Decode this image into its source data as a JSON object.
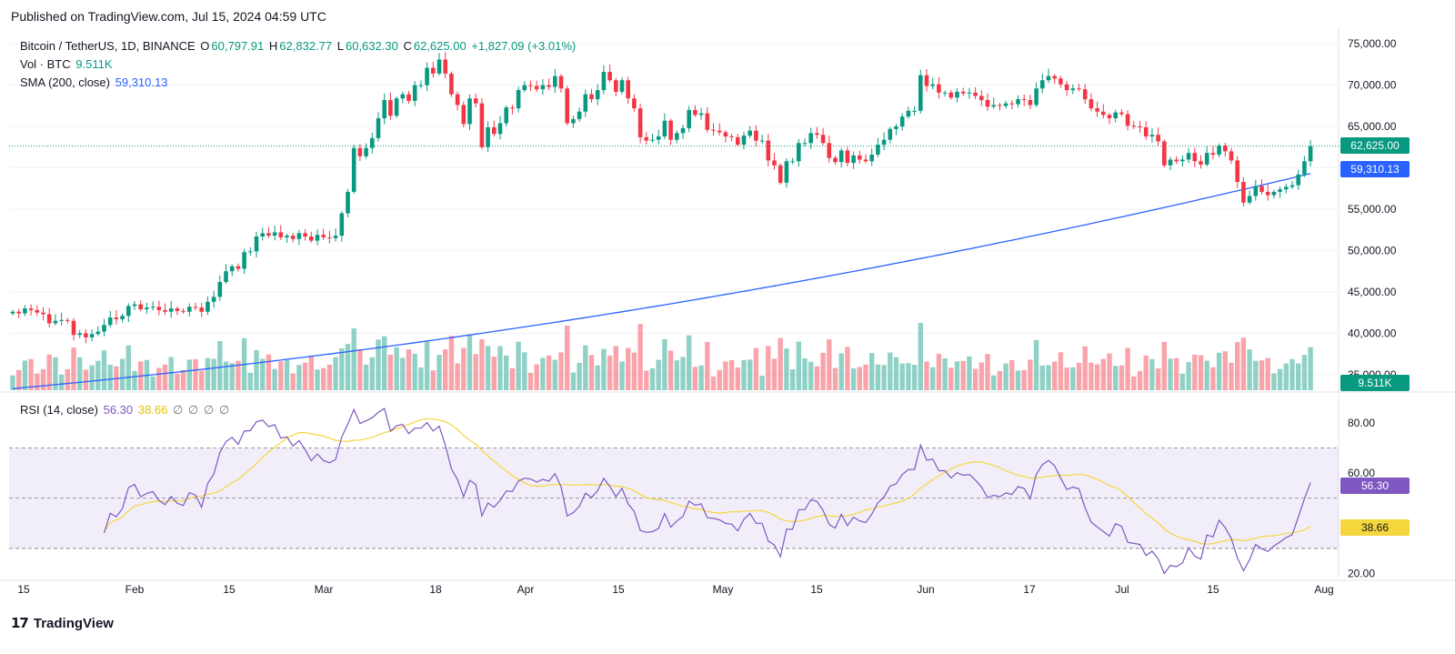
{
  "header": {
    "published": "Published on TradingView.com, Jul 15, 2024 04:59 UTC"
  },
  "legend": {
    "symbol": "Bitcoin / TetherUS, 1D, BINANCE",
    "open_key": "O",
    "open": "60,797.91",
    "high_key": "H",
    "high": "62,832.77",
    "low_key": "L",
    "low": "60,632.30",
    "close_key": "C",
    "close": "62,625.00",
    "change": "+1,827.09 (+3.01%)",
    "vol_label": "Vol · BTC",
    "vol_value": "9.511K",
    "sma_label": "SMA (200, close)",
    "sma_value": "59,310.13",
    "rsi_label": "RSI (14, close)",
    "rsi_value": "56.30",
    "rsi_ma_value": "38.66",
    "rsi_extra": [
      "∅",
      "∅",
      "∅",
      "∅"
    ]
  },
  "footer": {
    "brand": "TradingView",
    "mark": "17"
  },
  "colors": {
    "up": "#089981",
    "down": "#f23645",
    "sma": "#2962ff",
    "rsi": "#7e57c2",
    "rsi_ma": "#f5d63d"
  },
  "tags": {
    "price": "62,625.00",
    "sma": "59,310.13",
    "volume": "9.511K",
    "rsi": "56.30",
    "rsi_ma": "38.66"
  },
  "chart_data": [
    {
      "type": "candlestick",
      "title": "Bitcoin / TetherUS, 1D, BINANCE",
      "x_ticks": [
        "15",
        "Feb",
        "15",
        "Mar",
        "18",
        "Apr",
        "15",
        "May",
        "15",
        "Jun",
        "17",
        "Jul",
        "15",
        "Aug"
      ],
      "y_ticks": [
        "75,000.00",
        "70,000.00",
        "65,000.00",
        "60,000.00",
        "55,000.00",
        "50,000.00",
        "45,000.00",
        "40,000.00",
        "35,000.00"
      ],
      "ylim": [
        33000,
        77000
      ],
      "start_date": "2024-01-13",
      "closes": [
        42600,
        42400,
        43000,
        42800,
        42500,
        42300,
        41200,
        41500,
        41600,
        41500,
        39800,
        40000,
        39500,
        39900,
        40200,
        41000,
        41900,
        41700,
        42100,
        43300,
        43500,
        42900,
        43100,
        43200,
        42800,
        42600,
        43000,
        42700,
        42600,
        43200,
        43100,
        42600,
        43800,
        44400,
        46200,
        47500,
        48100,
        47800,
        49800,
        49900,
        51700,
        52100,
        51800,
        52200,
        51600,
        51800,
        51400,
        52100,
        51700,
        51200,
        51900,
        51600,
        51500,
        51800,
        54500,
        57100,
        62400,
        61400,
        62400,
        63600,
        66000,
        68200,
        66300,
        68400,
        68900,
        68100,
        70000,
        70000,
        72100,
        71400,
        73100,
        71400,
        68900,
        67600,
        65300,
        68400,
        67800,
        62500,
        64900,
        64100,
        65400,
        67300,
        67200,
        69400,
        70000,
        69900,
        69500,
        70000,
        69800,
        71100,
        69600,
        65400,
        65900,
        66800,
        68900,
        68300,
        69400,
        71600,
        70600,
        69200,
        70600,
        68400,
        67200,
        63700,
        63300,
        63400,
        63800,
        65700,
        63400,
        64200,
        64800,
        67000,
        66400,
        66600,
        64600,
        64500,
        64300,
        63800,
        63700,
        62800,
        63900,
        64500,
        63300,
        63300,
        60900,
        60300,
        58200,
        60800,
        60800,
        63000,
        63000,
        64200,
        64000,
        63000,
        61200,
        60700,
        62100,
        60600,
        61500,
        61000,
        60800,
        61600,
        62800,
        63400,
        64700,
        65000,
        66200,
        66900,
        66900,
        71200,
        69900,
        70100,
        69100,
        69100,
        68500,
        69200,
        69000,
        69100,
        68700,
        68200,
        67400,
        67600,
        67500,
        67800,
        67700,
        68300,
        68200,
        67600,
        69600,
        70600,
        71100,
        70800,
        70100,
        69400,
        69600,
        69500,
        68300,
        67200,
        66800,
        66400,
        66000,
        66700,
        66500,
        65100,
        65000,
        64900,
        63800,
        64000,
        63200,
        60300,
        61000,
        60800,
        61000,
        61800,
        60800,
        60400,
        61800,
        61600,
        62700,
        62000,
        60900,
        58300,
        55800,
        56600,
        57800,
        57100,
        56700,
        57100,
        57400,
        57700,
        57900,
        59200,
        60800,
        62625
      ],
      "sma200": {
        "start": 33300,
        "end": 59310.13,
        "name": "SMA (200, close)"
      },
      "volume_label": "Vol · BTC",
      "volume_last": "9.511K"
    },
    {
      "type": "line",
      "title": "RSI (14, close)",
      "y_ticks": [
        "80.00",
        "60.00",
        "20.00"
      ],
      "ylim": [
        18,
        92
      ],
      "bands": [
        30,
        70
      ],
      "series": [
        {
          "name": "RSI",
          "last": 56.3
        },
        {
          "name": "RSI MA",
          "last": 38.66
        }
      ]
    }
  ]
}
